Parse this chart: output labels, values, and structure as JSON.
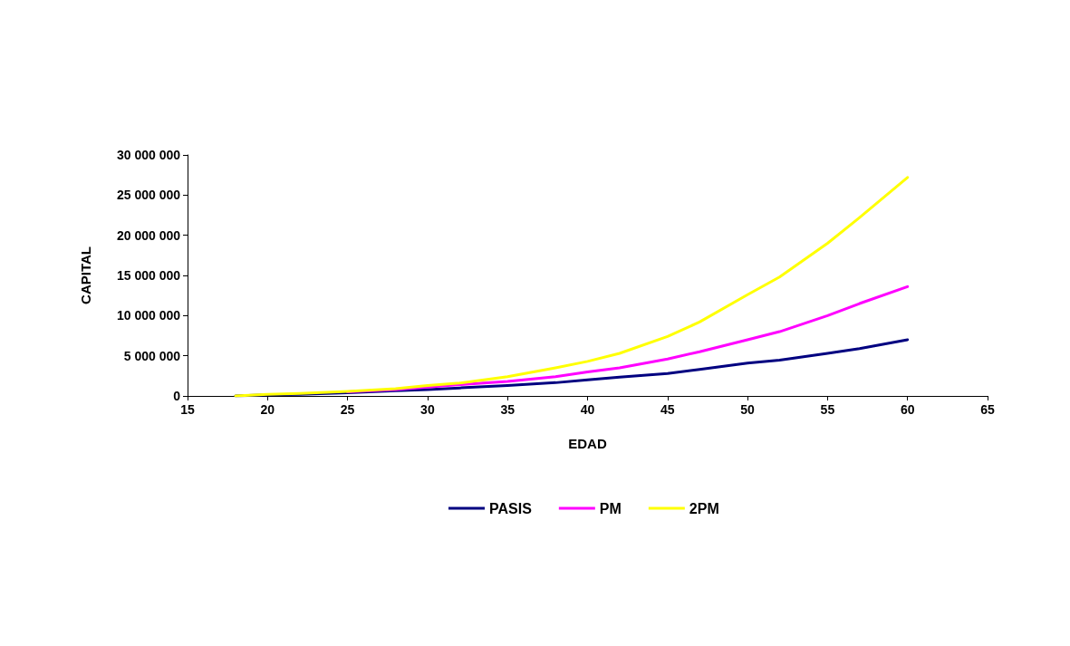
{
  "chart_data": {
    "type": "line",
    "xlabel": "EDAD",
    "ylabel": "CAPITAL",
    "x": [
      18,
      20,
      22,
      25,
      28,
      30,
      32,
      35,
      38,
      40,
      42,
      45,
      47,
      50,
      52,
      55,
      57,
      60
    ],
    "series": [
      {
        "name": "PASIS",
        "color": "#000080",
        "values": [
          0,
          150000,
          200000,
          400000,
          650000,
          800000,
          1000000,
          1300000,
          1650000,
          2000000,
          2350000,
          2800000,
          3300000,
          4100000,
          4450000,
          5300000,
          5900000,
          7000000
        ]
      },
      {
        "name": "PM",
        "color": "#ff00ff",
        "values": [
          null,
          null,
          null,
          500000,
          800000,
          1100000,
          1400000,
          1800000,
          2400000,
          3000000,
          3500000,
          4600000,
          5500000,
          7000000,
          8000000,
          10000000,
          11500000,
          13600000
        ]
      },
      {
        "name": "2PM",
        "color": "#ffff00",
        "values": [
          0,
          200000,
          300000,
          550000,
          900000,
          1300000,
          1600000,
          2400000,
          3500000,
          4300000,
          5300000,
          7400000,
          9200000,
          12600000,
          14800000,
          19000000,
          22200000,
          27200000
        ]
      }
    ],
    "xlim": [
      15,
      65
    ],
    "xticks": [
      15,
      20,
      25,
      30,
      35,
      40,
      45,
      50,
      55,
      60,
      65
    ],
    "ylim": [
      0,
      30000000
    ],
    "yticks": [
      0,
      {
        "value": 5000000,
        "label": "5 000 000"
      },
      {
        "value": 10000000,
        "label": "10 000 000"
      },
      {
        "value": 15000000,
        "label": "15 000 000"
      },
      {
        "value": 20000000,
        "label": "20 000 000"
      },
      {
        "value": 25000000,
        "label": "25 000 000"
      },
      {
        "value": 30000000,
        "label": "30 000 000"
      }
    ],
    "grid": false,
    "legend": "bottom",
    "marker": "none",
    "line_style": "solid"
  }
}
